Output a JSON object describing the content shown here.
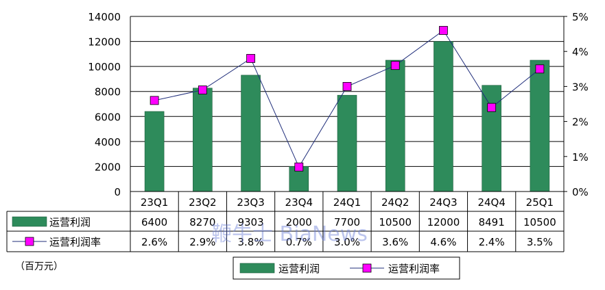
{
  "chart_data": {
    "type": "bar",
    "categories": [
      "23Q1",
      "23Q2",
      "23Q3",
      "23Q4",
      "24Q1",
      "24Q2",
      "24Q3",
      "24Q4",
      "25Q1"
    ],
    "series": [
      {
        "name": "运营利润",
        "type": "bar",
        "axis": "left",
        "color": "#2e8b5b",
        "values": [
          6400,
          8270,
          9303,
          2000,
          7700,
          10500,
          12000,
          8491,
          10500
        ]
      },
      {
        "name": "运营利润率",
        "type": "line",
        "axis": "right",
        "color": "#1f2d7a",
        "marker_color": "#ff00ff",
        "values": [
          2.6,
          2.9,
          3.8,
          0.7,
          3.0,
          3.6,
          4.6,
          2.4,
          3.5
        ],
        "labels": [
          "2.6%",
          "2.9%",
          "3.8%",
          "0.7%",
          "3.0%",
          "3.6%",
          "4.6%",
          "2.4%",
          "3.5%"
        ]
      }
    ],
    "y_left": {
      "min": 0,
      "max": 14000,
      "ticks": [
        "0",
        "2000",
        "4000",
        "6000",
        "8000",
        "10000",
        "12000",
        "14000"
      ]
    },
    "y_right": {
      "min": 0,
      "max": 5,
      "ticks": [
        "0%",
        "1%",
        "2%",
        "3%",
        "4%",
        "5%"
      ]
    },
    "grid": "horizontal",
    "data_table": true,
    "unit_label": "（百万元）",
    "legend": {
      "placement": "bottom-center",
      "items": [
        "运营利润",
        "运营利润率"
      ]
    },
    "watermark": "鞭牛士 BiaNews"
  }
}
